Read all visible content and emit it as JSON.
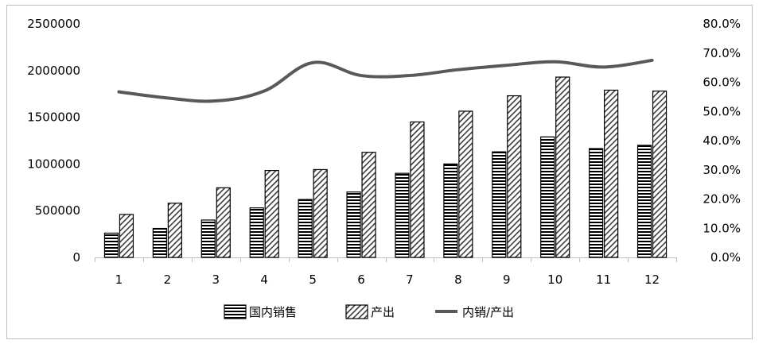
{
  "chart_data": {
    "type": "bar",
    "categories": [
      "1",
      "2",
      "3",
      "4",
      "5",
      "6",
      "7",
      "8",
      "9",
      "10",
      "11",
      "12"
    ],
    "series": [
      {
        "name": "国内销售",
        "kind": "bar",
        "pattern": "horizontal-stripes",
        "values": [
          260000,
          310000,
          400000,
          530000,
          620000,
          700000,
          900000,
          1000000,
          1130000,
          1290000,
          1165000,
          1200000
        ]
      },
      {
        "name": "产出",
        "kind": "bar",
        "pattern": "diagonal-hatch",
        "values": [
          460000,
          580000,
          745000,
          930000,
          940000,
          1125000,
          1450000,
          1565000,
          1730000,
          1930000,
          1790000,
          1780000
        ]
      },
      {
        "name": "内销/产出",
        "kind": "line",
        "axis": "right",
        "color": "#595959",
        "values": [
          0.567,
          0.546,
          0.536,
          0.57,
          0.667,
          0.623,
          0.623,
          0.643,
          0.658,
          0.67,
          0.652,
          0.675
        ]
      }
    ],
    "y_left": {
      "ylim": [
        0,
        2500000
      ],
      "ticks": [
        "0",
        "500000",
        "1000000",
        "1500000",
        "2000000",
        "2500000"
      ]
    },
    "y_right": {
      "ylim": [
        0,
        0.8
      ],
      "ticks": [
        "0.0%",
        "10.0%",
        "20.0%",
        "30.0%",
        "40.0%",
        "50.0%",
        "60.0%",
        "70.0%",
        "80.0%"
      ]
    },
    "grid": false,
    "legend_position": "bottom"
  }
}
